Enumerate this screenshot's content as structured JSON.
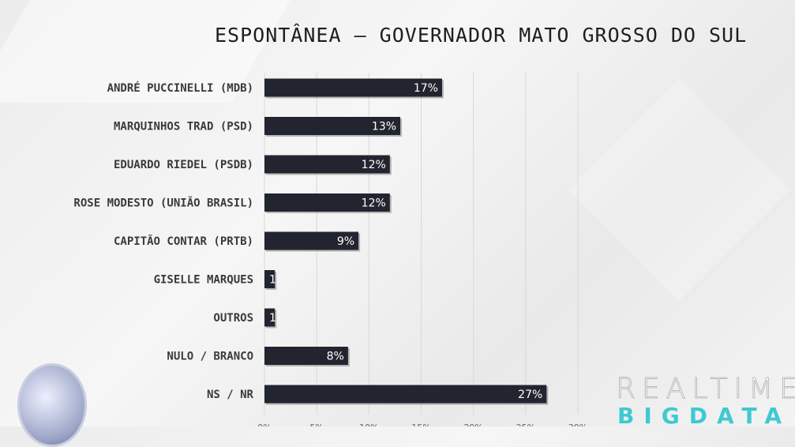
{
  "chart_data": {
    "type": "bar",
    "orientation": "horizontal",
    "title": "ESPONTÂNEA – GOVERNADOR MATO GROSSO DO SUL",
    "categories": [
      "ANDRÉ PUCCINELLI (MDB)",
      "MARQUINHOS TRAD (PSD)",
      "EDUARDO RIEDEL (PSDB)",
      "ROSE MODESTO (UNIÃO BRASIL)",
      "CAPITÃO CONTAR (PRTB)",
      "GISELLE MARQUES",
      "OUTROS",
      "NULO / BRANCO",
      "NS / NR"
    ],
    "values": [
      17,
      13,
      12,
      12,
      9,
      1,
      1,
      8,
      27
    ],
    "data_labels": [
      "17%",
      "13%",
      "12%",
      "12%",
      "9%",
      "1",
      "1",
      "8%",
      "27%"
    ],
    "xlim": [
      0,
      30
    ],
    "xticks": [
      "0%",
      "5%",
      "10%",
      "15%",
      "20%",
      "25%",
      "30%"
    ],
    "grid": true,
    "bar_color": "#22252f"
  },
  "branding": {
    "realtime": "REALTIME",
    "bigdata": "BIGDATA"
  }
}
